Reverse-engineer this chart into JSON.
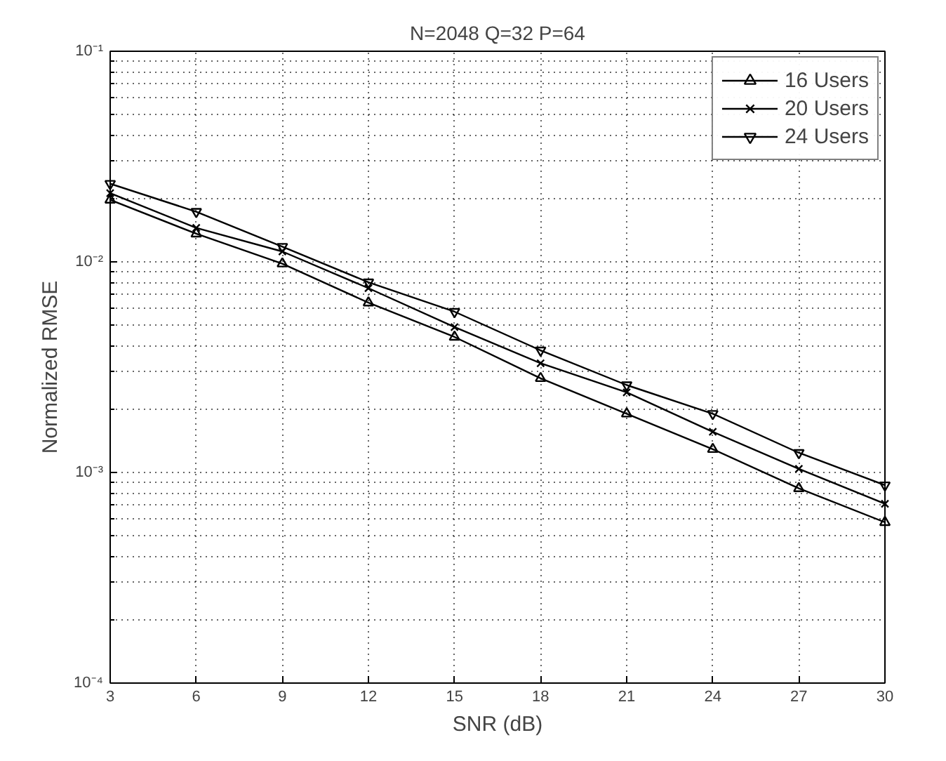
{
  "chart_data": {
    "type": "line",
    "title": "N=2048 Q=32 P=64",
    "xlabel": "SNR (dB)",
    "ylabel": "Normalized RMSE",
    "x": [
      3,
      6,
      9,
      12,
      15,
      18,
      21,
      24,
      27,
      30
    ],
    "series": [
      {
        "name": "16 Users",
        "color": "#000000",
        "marker": "triangle",
        "values": [
          0.0197,
          0.0136,
          0.0098,
          0.0064,
          0.0044,
          0.0028,
          0.0019,
          0.00129,
          0.00084,
          0.00058
        ]
      },
      {
        "name": "20 Users",
        "color": "#000000",
        "marker": "cross",
        "values": [
          0.0212,
          0.0145,
          0.0112,
          0.0075,
          0.0049,
          0.0033,
          0.0024,
          0.00156,
          0.00104,
          0.00071
        ]
      },
      {
        "name": "24 Users",
        "color": "#000000",
        "marker": "triangle_down",
        "values": [
          0.0235,
          0.0173,
          0.0118,
          0.008,
          0.0058,
          0.0038,
          0.0026,
          0.0019,
          0.00124,
          0.00087
        ]
      }
    ],
    "xlim": [
      3,
      30
    ],
    "xticks": [
      3,
      6,
      9,
      12,
      15,
      18,
      21,
      24,
      27,
      30
    ],
    "ylim": [
      0.0001,
      0.1
    ],
    "yticks": [
      {
        "value": 0.0001,
        "label": "10⁻⁴"
      },
      {
        "value": 0.001,
        "label": "10⁻³"
      },
      {
        "value": 0.01,
        "label": "10⁻²"
      },
      {
        "value": 0.1,
        "label": "10⁻¹"
      }
    ],
    "log": "y",
    "grid": true,
    "legend": "top right",
    "line_style": "solid"
  }
}
